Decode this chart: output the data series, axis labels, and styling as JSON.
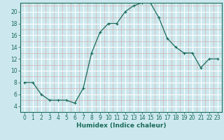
{
  "x": [
    0,
    1,
    2,
    3,
    4,
    5,
    6,
    7,
    8,
    9,
    10,
    11,
    12,
    13,
    14,
    15,
    16,
    17,
    18,
    19,
    20,
    21,
    22,
    23
  ],
  "y": [
    8,
    8,
    6,
    5,
    5,
    5,
    4.5,
    7,
    13,
    16.5,
    18,
    18,
    20,
    21,
    21.5,
    21.5,
    19,
    15.5,
    14,
    13,
    13,
    10.5,
    12,
    12
  ],
  "line_color": "#1a6b5a",
  "marker": "+",
  "bg_color": "#cce8ee",
  "grid_major_color": "#ffffff",
  "grid_minor_color": "#d4b0b0",
  "xlabel": "Humidex (Indice chaleur)",
  "ylim": [
    3.5,
    21.5
  ],
  "xlim": [
    -0.5,
    23.5
  ],
  "yticks": [
    4,
    6,
    8,
    10,
    12,
    14,
    16,
    18,
    20
  ],
  "xticks": [
    0,
    1,
    2,
    3,
    4,
    5,
    6,
    7,
    8,
    9,
    10,
    11,
    12,
    13,
    14,
    15,
    16,
    17,
    18,
    19,
    20,
    21,
    22,
    23
  ],
  "xlabel_fontsize": 6.5,
  "tick_fontsize": 5.5,
  "markersize": 3,
  "linewidth": 0.9
}
